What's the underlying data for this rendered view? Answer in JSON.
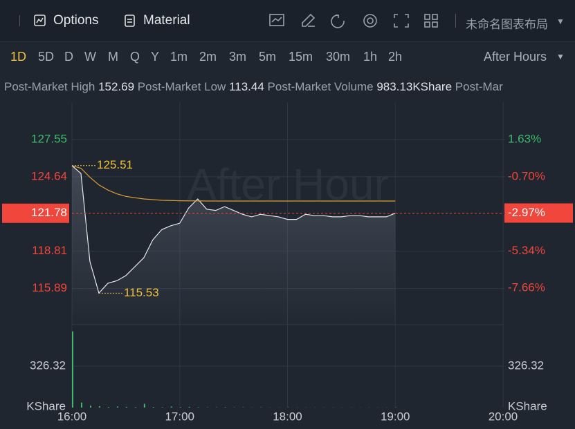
{
  "toolbar": {
    "buttons": [
      "Options",
      "Material"
    ],
    "layout_name": "未命名图表布局"
  },
  "timeframes": {
    "items": [
      "1D",
      "5D",
      "D",
      "W",
      "M",
      "Q",
      "Y",
      "1m",
      "2m",
      "3m",
      "5m",
      "15m",
      "30m",
      "1h",
      "2h"
    ],
    "active": 0,
    "session": "After Hours"
  },
  "stats": [
    {
      "label": "Post-Market High",
      "value": "152.69"
    },
    {
      "label": "Post-Market Low",
      "value": "113.44"
    },
    {
      "label": "Post-Market Volume",
      "value": "983.13KShare"
    },
    {
      "label": "Post-Mar",
      "value": null
    }
  ],
  "chart_data": [
    {
      "type": "line",
      "watermark": "After Hour",
      "x": [
        "16:00",
        "16:05",
        "16:10",
        "16:15",
        "16:20",
        "16:25",
        "16:30",
        "16:35",
        "16:40",
        "16:45",
        "16:50",
        "16:55",
        "17:00",
        "17:05",
        "17:10",
        "17:15",
        "17:20",
        "17:25",
        "17:30",
        "17:35",
        "17:40",
        "17:45",
        "17:50",
        "17:55",
        "18:00",
        "18:05",
        "18:10",
        "18:15",
        "18:20",
        "18:25",
        "18:30",
        "18:35",
        "18:40",
        "18:45",
        "18:50",
        "18:55",
        "19:00"
      ],
      "series": [
        {
          "color": "#e6e8eb",
          "values": [
            125.51,
            124.9,
            118.0,
            115.53,
            116.3,
            116.5,
            116.9,
            117.6,
            118.3,
            119.7,
            120.5,
            120.8,
            121.0,
            122.2,
            122.9,
            122.1,
            122.0,
            122.3,
            122.0,
            121.7,
            121.5,
            121.7,
            121.6,
            121.5,
            121.3,
            121.3,
            121.7,
            121.6,
            121.6,
            121.5,
            121.5,
            121.6,
            121.6,
            121.5,
            121.5,
            121.5,
            121.78
          ]
        },
        {
          "color": "#e0a030",
          "values": [
            125.51,
            125.3,
            124.6,
            124.0,
            123.6,
            123.3,
            123.1,
            123.0,
            122.9,
            122.85,
            122.8,
            122.78,
            122.76,
            122.75,
            122.75,
            122.74,
            122.74,
            122.74,
            122.74,
            122.74,
            122.74,
            122.74,
            122.74,
            122.74,
            122.74,
            122.74,
            122.74,
            122.74,
            122.74,
            122.74,
            122.74,
            122.74,
            122.74,
            122.74,
            122.74,
            122.74,
            122.74
          ]
        }
      ],
      "annotations": [
        {
          "x": "16:00",
          "value": 125.51
        },
        {
          "x": "16:15",
          "value": 115.53
        }
      ],
      "xlim": [
        "16:00",
        "20:00"
      ],
      "ylim": [
        113.06,
        130.47
      ],
      "yticks": [
        127.55,
        124.64,
        121.78,
        118.81,
        115.89
      ],
      "y2lim": [
        -9.95,
        3.96
      ],
      "y2ticks": [
        {
          "value": 1.63,
          "label": "1.63%"
        },
        {
          "value": -0.7,
          "label": "-0.70%"
        },
        {
          "value": -2.97,
          "label": "-2.97%"
        },
        {
          "value": -5.34,
          "label": "-5.34%"
        },
        {
          "value": -7.66,
          "label": "-7.66%"
        }
      ],
      "up_color": "#3dba6b",
      "down_color": "#f0463c"
    },
    {
      "type": "bar",
      "color": "#3dba6b",
      "y_label": "KShare",
      "x": [
        "16:00",
        "16:05",
        "16:10",
        "16:15",
        "16:20",
        "16:25",
        "16:30",
        "16:35",
        "16:40",
        "16:45",
        "16:50",
        "16:55",
        "17:00",
        "17:05",
        "17:10",
        "17:15",
        "17:20",
        "17:25",
        "17:30",
        "17:35",
        "17:40",
        "17:45",
        "17:50",
        "17:55",
        "18:00",
        "18:05",
        "18:10",
        "18:15",
        "18:20",
        "18:25",
        "18:30",
        "18:35",
        "18:40",
        "18:45",
        "18:50",
        "18:55",
        "19:00"
      ],
      "values": [
        600,
        40,
        15,
        10,
        5,
        8,
        6,
        4,
        30,
        5,
        3,
        8,
        4,
        6,
        3,
        2,
        2,
        3,
        2,
        2,
        1,
        2,
        1,
        1,
        2,
        1,
        1,
        1,
        1,
        1,
        1,
        1,
        1,
        1,
        1,
        1,
        2
      ],
      "xlim": [
        "16:00",
        "20:00"
      ],
      "xticks": [
        "16:00",
        "17:00",
        "18:00",
        "19:00",
        "20:00"
      ],
      "ylim": [
        0,
        652.64
      ],
      "yticks": [
        326.32
      ]
    }
  ]
}
